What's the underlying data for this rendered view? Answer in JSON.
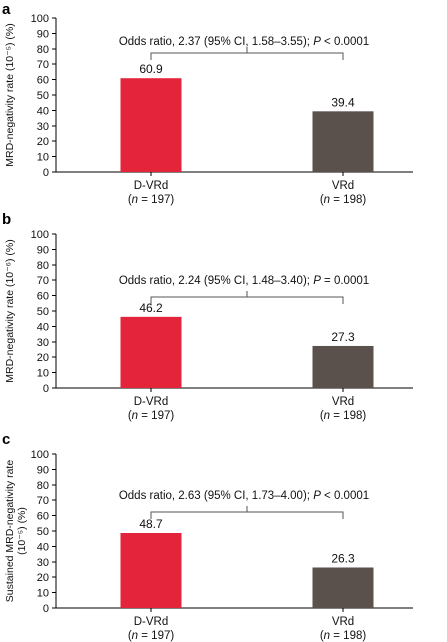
{
  "colors": {
    "series_a": "#e3243b",
    "series_b": "#5a504c"
  },
  "chart_data": [
    {
      "type": "bar",
      "panel_letter": "a",
      "ylabel_lines": [
        "MRD-negativity rate (10⁻⁵) (%)"
      ],
      "ylim": [
        0,
        100
      ],
      "yticks": [
        0,
        10,
        20,
        30,
        40,
        50,
        60,
        70,
        80,
        90,
        100
      ],
      "categories": [
        {
          "name": "D-VRd",
          "n_text": "(n = 197)"
        },
        {
          "name": "VRd",
          "n_text": "(n = 198)"
        }
      ],
      "values": [
        60.9,
        39.4
      ],
      "value_labels": [
        "60.9",
        "39.4"
      ],
      "annotation": "Odds ratio, 2.37 (95% CI, 1.58–3.55); P < 0.0001"
    },
    {
      "type": "bar",
      "panel_letter": "b",
      "ylabel_lines": [
        "MRD-negativity rate (10⁻⁶) (%)"
      ],
      "ylim": [
        0,
        100
      ],
      "yticks": [
        0,
        10,
        20,
        30,
        40,
        50,
        60,
        70,
        80,
        90,
        100
      ],
      "categories": [
        {
          "name": "D-VRd",
          "n_text": "(n = 197)"
        },
        {
          "name": "VRd",
          "n_text": "(n = 198)"
        }
      ],
      "values": [
        46.2,
        27.3
      ],
      "value_labels": [
        "46.2",
        "27.3"
      ],
      "annotation": "Odds ratio, 2.24 (95% CI, 1.48–3.40); P = 0.0001"
    },
    {
      "type": "bar",
      "panel_letter": "c",
      "ylabel_lines": [
        "Sustained MRD-negativity rate",
        "(10⁻⁵) (%)"
      ],
      "ylim": [
        0,
        100
      ],
      "yticks": [
        0,
        10,
        20,
        30,
        40,
        50,
        60,
        70,
        80,
        90,
        100
      ],
      "categories": [
        {
          "name": "D-VRd",
          "n_text": "(n = 197)"
        },
        {
          "name": "VRd",
          "n_text": "(n = 198)"
        }
      ],
      "values": [
        48.7,
        26.3
      ],
      "value_labels": [
        "48.7",
        "26.3"
      ],
      "annotation": "Odds ratio, 2.63 (95% CI, 1.73–4.00); P < 0.0001"
    }
  ]
}
